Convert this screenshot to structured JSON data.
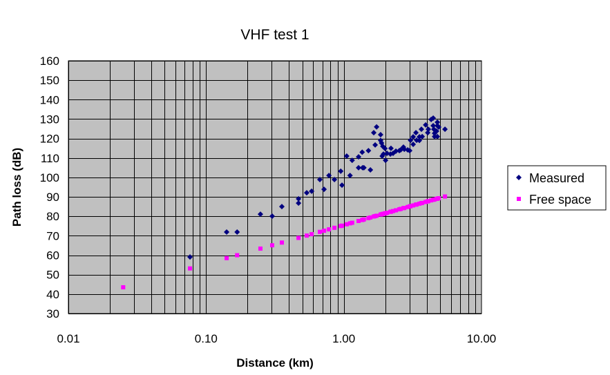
{
  "chart_data": {
    "type": "scatter",
    "title": "VHF test 1",
    "xlabel": "Distance (km)",
    "ylabel": "Path loss (dB)",
    "xscale": "log",
    "xlim": [
      0.01,
      10
    ],
    "ylim": [
      30,
      160
    ],
    "xticks": [
      0.01,
      0.1,
      1,
      10
    ],
    "xtick_labels": [
      "0.01",
      "0.10",
      "1.00",
      "10.00"
    ],
    "yticks": [
      30,
      40,
      50,
      60,
      70,
      80,
      90,
      100,
      110,
      120,
      130,
      140,
      150,
      160
    ],
    "grid": true,
    "legend_position": "right",
    "series": [
      {
        "name": "Measured",
        "marker": "diamond",
        "color": "#000080",
        "x": [
          0.0764,
          0.141,
          0.168,
          0.248,
          0.302,
          0.355,
          0.469,
          0.469,
          0.538,
          0.584,
          0.67,
          0.719,
          0.78,
          0.855,
          0.95,
          0.97,
          1.05,
          1.11,
          1.15,
          1.28,
          1.28,
          1.36,
          1.37,
          1.4,
          1.51,
          1.56,
          1.65,
          1.73,
          1.69,
          1.85,
          1.85,
          1.88,
          1.92,
          1.99,
          1.9,
          1.94,
          2.01,
          2.06,
          2.18,
          2.2,
          2.28,
          2.39,
          2.53,
          2.59,
          2.71,
          2.75,
          2.91,
          3.01,
          3.05,
          3.19,
          3.19,
          3.34,
          3.38,
          3.54,
          3.54,
          3.71,
          3.66,
          3.93,
          4.07,
          4.11,
          4.31,
          4.46,
          4.46,
          4.51,
          4.56,
          4.56,
          4.78,
          4.78,
          4.72,
          4.78,
          4.89,
          5.43
        ],
        "y": [
          59.1,
          71.9,
          71.9,
          81.1,
          80.1,
          85,
          89,
          86.8,
          92.1,
          92.9,
          98.9,
          93.9,
          101,
          98.9,
          103.2,
          96,
          111,
          101,
          108.8,
          110.6,
          105,
          113,
          105,
          105,
          113.8,
          103.9,
          123,
          126,
          116.7,
          122,
          119,
          117.7,
          116,
          114.9,
          111,
          112,
          108.8,
          112.4,
          112,
          115,
          112.4,
          113.5,
          113.8,
          114.2,
          115.6,
          114.5,
          114.2,
          113.8,
          119.1,
          117,
          120.9,
          123,
          119.1,
          119,
          120.9,
          121,
          124.8,
          127,
          123,
          124.8,
          129.8,
          130.5,
          126.6,
          124.8,
          122.7,
          121,
          128.4,
          126.6,
          123.8,
          121,
          125.9,
          124.8
        ]
      },
      {
        "name": "Free space",
        "marker": "square",
        "color": "#FF00FF",
        "x": [
          0.025,
          0.0764,
          0.141,
          0.168,
          0.248,
          0.302,
          0.355,
          0.469,
          0.538,
          0.584,
          0.67,
          0.719,
          0.78,
          0.855,
          0.95,
          0.97,
          1.05,
          1.11,
          1.15,
          1.28,
          1.36,
          1.37,
          1.4,
          1.51,
          1.56,
          1.65,
          1.69,
          1.73,
          1.85,
          1.88,
          1.9,
          1.92,
          1.94,
          1.99,
          2.01,
          2.06,
          2.18,
          2.2,
          2.28,
          2.39,
          2.53,
          2.59,
          2.71,
          2.75,
          2.91,
          3.01,
          3.05,
          3.19,
          3.34,
          3.38,
          3.54,
          3.66,
          3.71,
          3.93,
          4.07,
          4.11,
          4.31,
          4.46,
          4.51,
          4.56,
          4.72,
          4.78,
          4.89,
          5.43
        ],
        "y": [
          43.5,
          53.2,
          58.5,
          60.0,
          63.4,
          65.1,
          66.5,
          68.9,
          70.1,
          70.8,
          72.0,
          72.6,
          73.3,
          74.1,
          75.0,
          75.2,
          75.9,
          76.4,
          76.7,
          77.6,
          78.1,
          78.2,
          78.4,
          79.1,
          79.4,
          79.9,
          80.1,
          80.3,
          80.9,
          81.0,
          81.1,
          81.2,
          81.3,
          81.5,
          81.6,
          81.8,
          82.3,
          82.4,
          82.7,
          83.1,
          83.6,
          83.8,
          84.2,
          84.3,
          84.8,
          85.1,
          85.2,
          85.6,
          86.0,
          86.1,
          86.5,
          86.8,
          86.9,
          87.4,
          87.7,
          87.8,
          88.2,
          88.5,
          88.6,
          88.7,
          89.0,
          89.1,
          89.3,
          90.2
        ]
      }
    ]
  }
}
